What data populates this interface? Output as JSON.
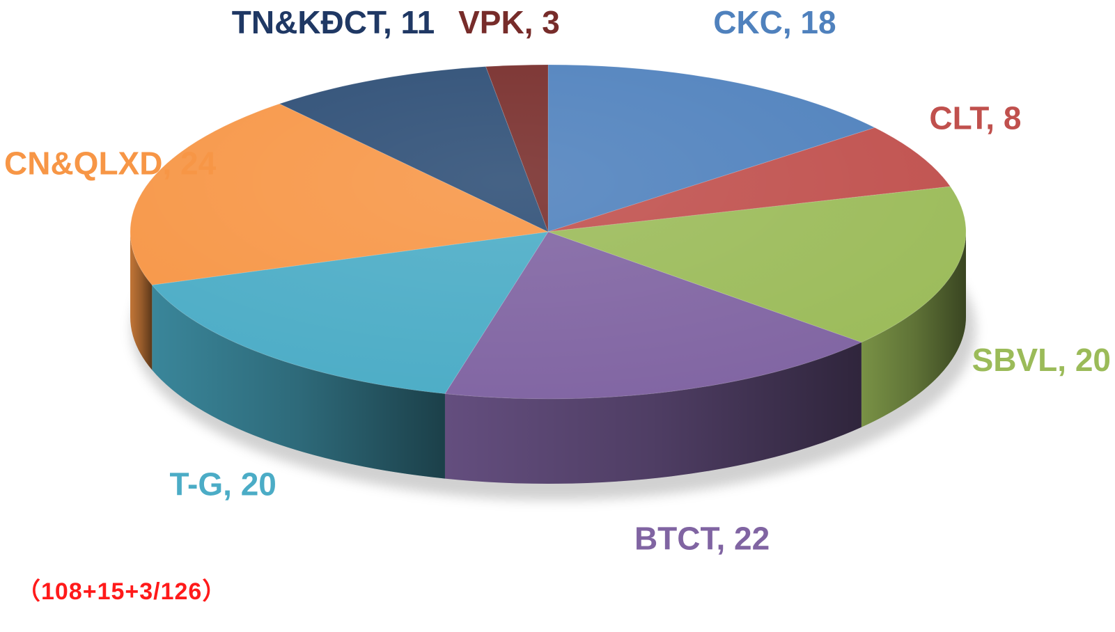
{
  "chart_data": {
    "type": "pie",
    "style": "3d",
    "title": "",
    "unit": "",
    "slices": [
      {
        "label": "CKC",
        "value": 18,
        "label_text": "CKC, 18",
        "color": "#4f81bd",
        "label_color": "#4f81bd"
      },
      {
        "label": "CLT",
        "value": 8,
        "label_text": "CLT, 8",
        "color": "#c0504d",
        "label_color": "#c0504d"
      },
      {
        "label": "SBVL",
        "value": 20,
        "label_text": "SBVL, 20",
        "color": "#9bbb59",
        "label_color": "#9bbb59"
      },
      {
        "label": "BTCT",
        "value": 22,
        "label_text": "BTCT, 22",
        "color": "#8064a2",
        "label_color": "#8064a2"
      },
      {
        "label": "T-G",
        "value": 20,
        "label_text": "T-G, 20",
        "color": "#4bacc6",
        "label_color": "#4bacc6"
      },
      {
        "label": "CN&QLXD",
        "value": 24,
        "label_text": "CN&QLXD, 24",
        "color": "#f79646",
        "label_color": "#f79646"
      },
      {
        "label": "TN&KĐCT",
        "value": 11,
        "label_text": "TN&KĐCT, 11",
        "color": "#2c4d75",
        "label_color": "#1f3864"
      },
      {
        "label": "VPK",
        "value": 3,
        "label_text": "VPK, 3",
        "color": "#772c2a",
        "label_color": "#772c2a"
      }
    ],
    "legend": "none",
    "footnote": "（108+15+3/126）",
    "footnote_color": "#ff1a1a"
  }
}
